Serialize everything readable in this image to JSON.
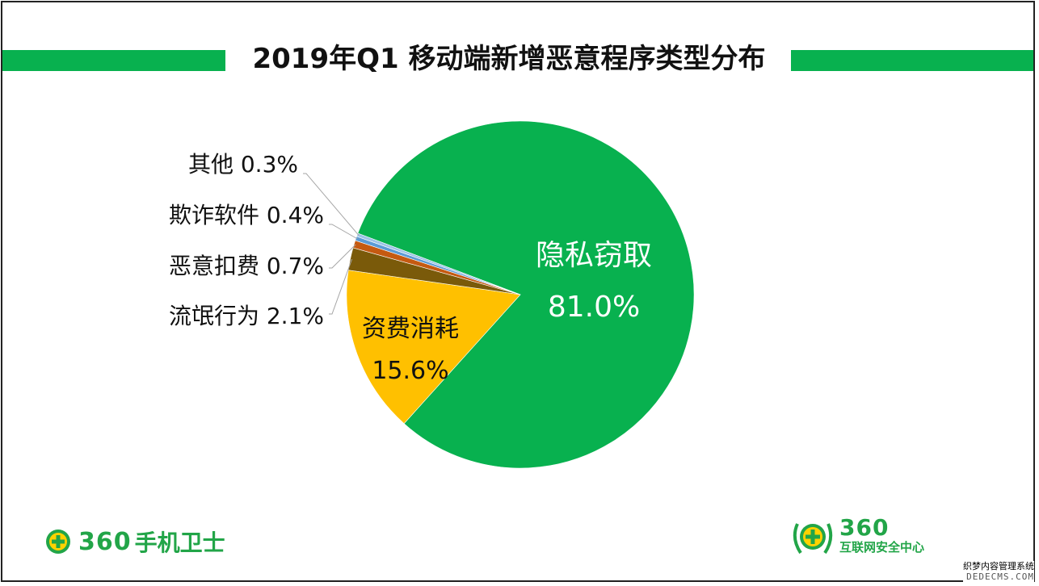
{
  "title": "2019年Q1 移动端新增恶意程序类型分布",
  "colors": {
    "green": "#08b14f",
    "gold": "#ffc000",
    "brown": "#7a5a0a",
    "orange": "#c55a11",
    "lightblue": "#9dc3e6",
    "label_line": "#a6a6a6"
  },
  "chart_data": {
    "type": "pie",
    "title": "2019年Q1 移动端新增恶意程序类型分布",
    "slices": [
      {
        "name": "隐私窃取",
        "value": 81.0,
        "label": "81.0%",
        "color": "#08b14f",
        "label_position": "inside"
      },
      {
        "name": "资费消耗",
        "value": 15.6,
        "label": "15.6%",
        "color": "#ffc000",
        "label_position": "inside"
      },
      {
        "name": "流氓行为",
        "value": 2.1,
        "label": "2.1%",
        "color": "#7a5a0a",
        "label_position": "outside-left"
      },
      {
        "name": "恶意扣费",
        "value": 0.7,
        "label": "0.7%",
        "color": "#c55a11",
        "label_position": "outside-left"
      },
      {
        "name": "欺诈软件",
        "value": 0.4,
        "label": "0.4%",
        "color": "#5b9bd5",
        "label_position": "outside-left"
      },
      {
        "name": "其他",
        "value": 0.3,
        "label": "0.3%",
        "color": "#9dc3e6",
        "label_position": "outside-left"
      }
    ]
  },
  "logos": {
    "left": {
      "number": "360",
      "text": "手机卫士"
    },
    "right": {
      "number": "360",
      "text": "互联网安全中心"
    }
  },
  "watermark": {
    "line1": "织梦内容管理系统",
    "line2": "DEDECMS.COM"
  }
}
